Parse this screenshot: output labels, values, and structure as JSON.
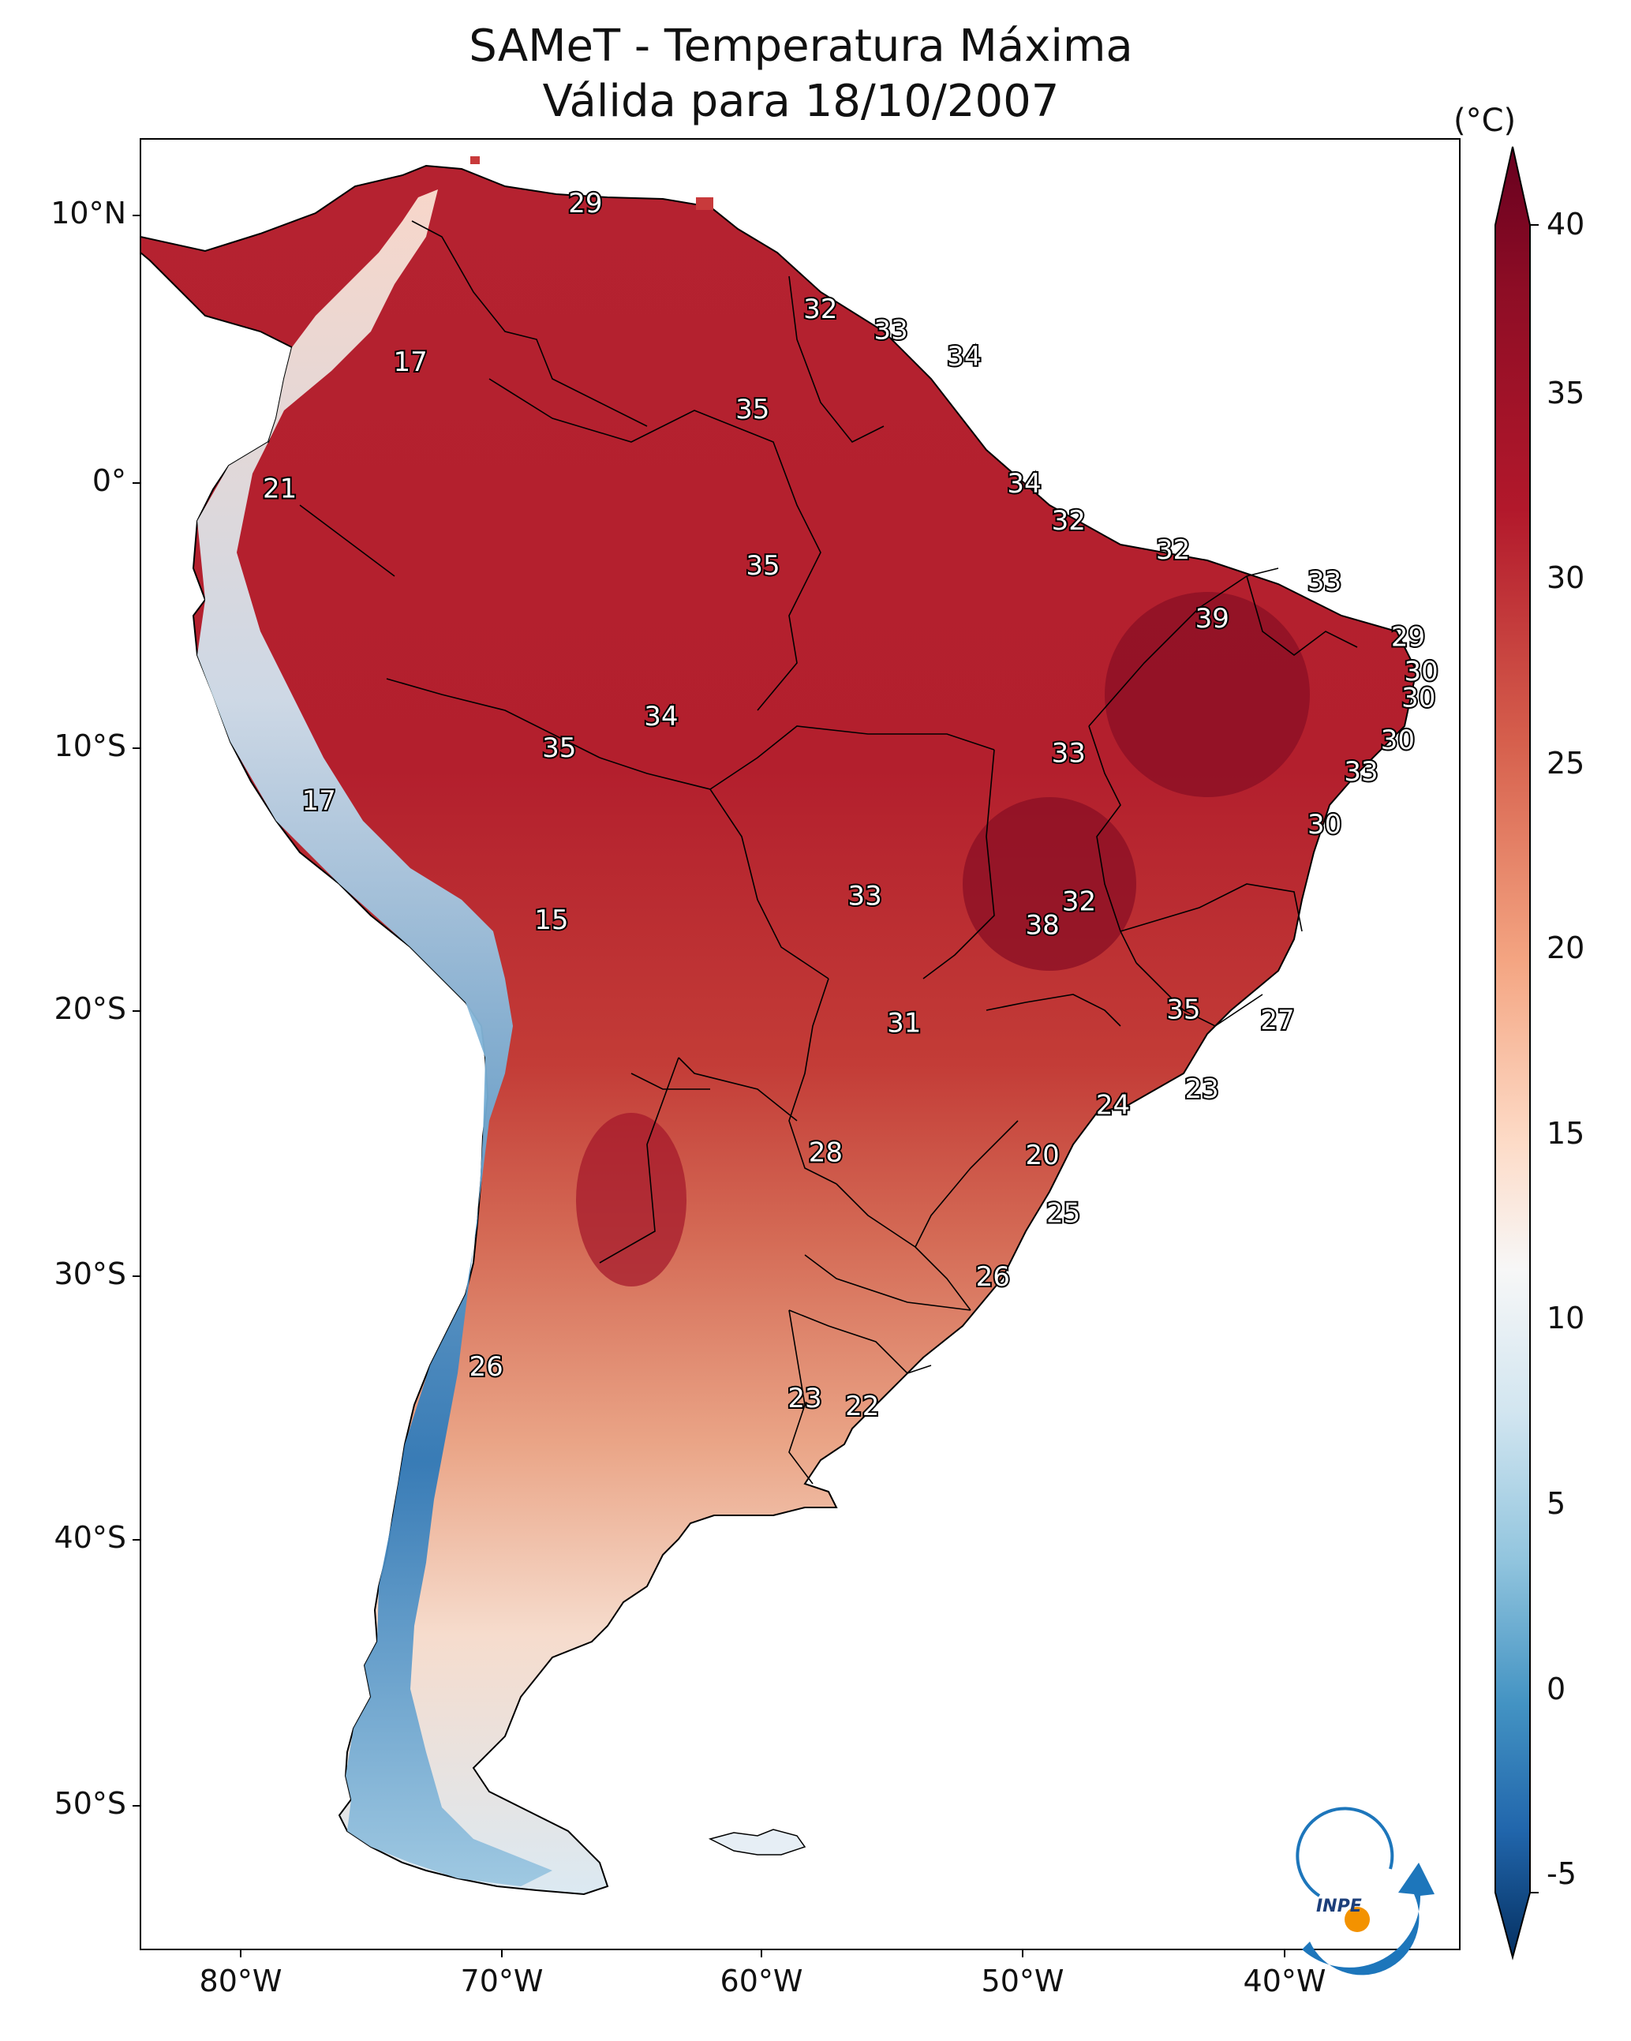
{
  "title": "SAMeT - Temperatura Máxima",
  "subtitle": "Válida para 18/10/2007",
  "colorbar": {
    "unit": "(°C)",
    "ticks": [
      "40",
      "35",
      "30",
      "25",
      "20",
      "15",
      "10",
      "5",
      "0",
      "-5"
    ],
    "range": [
      -5,
      40
    ],
    "colors": [
      "#67001f",
      "#b2182b",
      "#d6604d",
      "#f4a582",
      "#fddbc7",
      "#f7f7f7",
      "#d1e5f0",
      "#92c5de",
      "#4393c3",
      "#2166ac",
      "#053061"
    ]
  },
  "axes": {
    "lat_labels": [
      "10°N",
      "0°",
      "10°S",
      "20°S",
      "30°S",
      "40°S",
      "50°S"
    ],
    "lon_labels": [
      "80°W",
      "70°W",
      "60°W",
      "50°W",
      "40°W"
    ]
  },
  "stations": [
    {
      "label": "29",
      "lon": -66.8,
      "lat": 10.6
    },
    {
      "label": "17",
      "lon": -73.5,
      "lat": 4.6
    },
    {
      "label": "32",
      "lon": -57.8,
      "lat": 6.6
    },
    {
      "label": "33",
      "lon": -55.1,
      "lat": 5.8
    },
    {
      "label": "34",
      "lon": -52.3,
      "lat": 4.8
    },
    {
      "label": "35",
      "lon": -60.4,
      "lat": 2.8
    },
    {
      "label": "21",
      "lon": -78.5,
      "lat": -0.2
    },
    {
      "label": "34",
      "lon": -50.0,
      "lat": 0.0
    },
    {
      "label": "32",
      "lon": -48.3,
      "lat": -1.4
    },
    {
      "label": "32",
      "lon": -44.3,
      "lat": -2.5
    },
    {
      "label": "35",
      "lon": -60.0,
      "lat": -3.1
    },
    {
      "label": "33",
      "lon": -38.5,
      "lat": -3.7
    },
    {
      "label": "39",
      "lon": -42.8,
      "lat": -5.1
    },
    {
      "label": "29",
      "lon": -35.3,
      "lat": -5.8
    },
    {
      "label": "30",
      "lon": -34.8,
      "lat": -7.1
    },
    {
      "label": "30",
      "lon": -34.9,
      "lat": -8.1
    },
    {
      "label": "34",
      "lon": -63.9,
      "lat": -8.8
    },
    {
      "label": "35",
      "lon": -67.8,
      "lat": -10.0
    },
    {
      "label": "33",
      "lon": -48.3,
      "lat": -10.2
    },
    {
      "label": "30",
      "lon": -35.7,
      "lat": -9.7
    },
    {
      "label": "33",
      "lon": -37.1,
      "lat": -10.9
    },
    {
      "label": "17",
      "lon": -77.0,
      "lat": -12.0
    },
    {
      "label": "30",
      "lon": -38.5,
      "lat": -12.9
    },
    {
      "label": "33",
      "lon": -56.1,
      "lat": -15.6
    },
    {
      "label": "32",
      "lon": -47.9,
      "lat": -15.8
    },
    {
      "label": "38",
      "lon": -49.3,
      "lat": -16.7
    },
    {
      "label": "15",
      "lon": -68.1,
      "lat": -16.5
    },
    {
      "label": "35",
      "lon": -43.9,
      "lat": -19.9
    },
    {
      "label": "27",
      "lon": -40.3,
      "lat": -20.3
    },
    {
      "label": "31",
      "lon": -54.6,
      "lat": -20.4
    },
    {
      "label": "23",
      "lon": -43.2,
      "lat": -22.9
    },
    {
      "label": "24",
      "lon": -46.6,
      "lat": -23.5
    },
    {
      "label": "28",
      "lon": -57.6,
      "lat": -25.3
    },
    {
      "label": "20",
      "lon": -49.3,
      "lat": -25.4
    },
    {
      "label": "25",
      "lon": -48.5,
      "lat": -27.6
    },
    {
      "label": "26",
      "lon": -51.2,
      "lat": -30.0
    },
    {
      "label": "26",
      "lon": -70.6,
      "lat": -33.4
    },
    {
      "label": "23",
      "lon": -58.4,
      "lat": -34.6
    },
    {
      "label": "22",
      "lon": -56.2,
      "lat": -34.9
    }
  ],
  "logo": {
    "text": "INPE"
  }
}
